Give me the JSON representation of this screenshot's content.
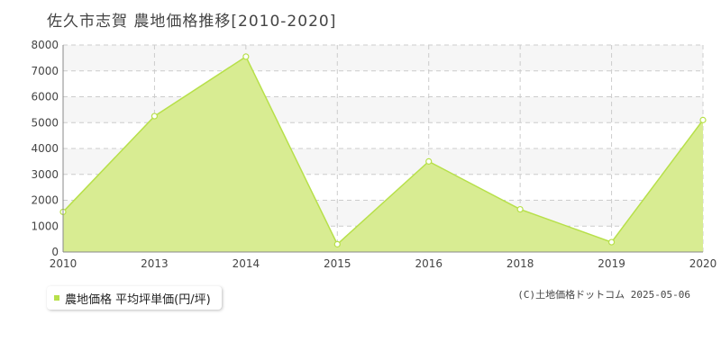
{
  "title": "佐久市志賀 農地価格推移[2010-2020]",
  "legend": {
    "label": "農地価格 平均坪単価(円/坪)",
    "color": "#b7e04a"
  },
  "copyright": "(C)土地価格ドットコム 2025-05-06",
  "chart_data": {
    "type": "area",
    "x": [
      "2010",
      "2013",
      "2014",
      "2015",
      "2016",
      "2018",
      "2019",
      "2020"
    ],
    "series": [
      {
        "name": "農地価格 平均坪単価(円/坪)",
        "values": [
          1550,
          5250,
          7550,
          300,
          3500,
          1650,
          380,
          5100
        ]
      }
    ],
    "ylim": [
      0,
      8000
    ],
    "yticks": [
      0,
      1000,
      2000,
      3000,
      4000,
      5000,
      6000,
      7000,
      8000
    ],
    "grid": true,
    "fill_color": "#d8ec92",
    "line_color": "#b7e04a",
    "legend_position": "bottom-left"
  }
}
